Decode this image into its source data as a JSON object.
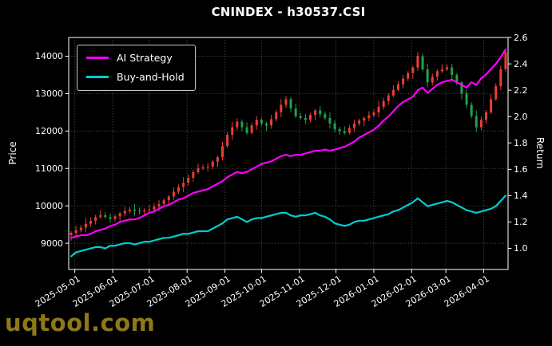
{
  "page": {
    "watermark": "uqtool.com",
    "watermark_color": "#8d7918",
    "background": "#000000"
  },
  "chart_data": {
    "type": "candlestick+line",
    "title": "CNINDEX - h30537.CSI",
    "legend_position": "upper-left",
    "grid": true,
    "axes": {
      "left": {
        "label": "Price",
        "ticks": [
          "9000",
          "10000",
          "11000",
          "12000",
          "13000",
          "14000"
        ],
        "range": [
          8300,
          14500
        ]
      },
      "right": {
        "label": "Return",
        "ticks": [
          "1.0",
          "1.2",
          "1.4",
          "1.6",
          "1.8",
          "2.0",
          "2.2",
          "2.4",
          "2.6"
        ],
        "range": [
          0.84,
          2.6
        ]
      },
      "bottom": {
        "ticks": [
          {
            "label": "2025-05-01",
            "pos": 0.75
          },
          {
            "label": "2025-06-01",
            "pos": 8.5
          },
          {
            "label": "2025-07-01",
            "pos": 16.0
          },
          {
            "label": "2025-08-01",
            "pos": 23.75
          },
          {
            "label": "2025-09-01",
            "pos": 31.5
          },
          {
            "label": "2025-10-01",
            "pos": 39.0
          },
          {
            "label": "2025-11-01",
            "pos": 46.75
          },
          {
            "label": "2025-12-01",
            "pos": 54.25
          },
          {
            "label": "2026-01-01",
            "pos": 62.0
          },
          {
            "label": "2026-02-01",
            "pos": 69.75
          },
          {
            "label": "2026-03-01",
            "pos": 76.75
          },
          {
            "label": "2026-04-01",
            "pos": 84.5
          }
        ]
      }
    },
    "candles": {
      "up_color": "#e93f33",
      "down_color": "#1fa24a",
      "open": [
        9220,
        9280,
        9350,
        9420,
        9520,
        9600,
        9700,
        9750,
        9700,
        9650,
        9720,
        9800,
        9860,
        9900,
        9870,
        9850,
        9880,
        9900,
        9980,
        10050,
        10150,
        10250,
        10380,
        10500,
        10620,
        10750,
        10900,
        11000,
        11030,
        11050,
        11180,
        11300,
        11600,
        11900,
        12100,
        12250,
        12100,
        11950,
        12150,
        12300,
        12200,
        12150,
        12320,
        12500,
        12700,
        12850,
        12600,
        12400,
        12350,
        12300,
        12430,
        12550,
        12450,
        12350,
        12200,
        12050,
        12000,
        11950,
        12080,
        12200,
        12280,
        12350,
        12420,
        12500,
        12650,
        12800,
        12950,
        13100,
        13250,
        13400,
        13550,
        13700,
        14000,
        13650,
        13300,
        13450,
        13600,
        13650,
        13700,
        13500,
        13300,
        13000,
        12700,
        12400,
        12100,
        12300,
        12500,
        12850,
        13200,
        13650
      ],
      "high": [
        9320,
        9460,
        9490,
        9670,
        9690,
        9760,
        9880,
        9830,
        9800,
        9770,
        9840,
        9970,
        9970,
        10050,
        9960,
        9940,
        10030,
        10060,
        10150,
        10200,
        10290,
        10490,
        10570,
        10770,
        10840,
        10960,
        11130,
        11110,
        11150,
        11230,
        11340,
        11710,
        11970,
        12250,
        12340,
        12310,
        12230,
        12230,
        12400,
        12350,
        12240,
        12430,
        12570,
        12850,
        12940,
        12910,
        12730,
        12480,
        12450,
        12480,
        12590,
        12660,
        12520,
        12500,
        12290,
        12110,
        12130,
        12160,
        12300,
        12330,
        12390,
        12530,
        12570,
        12800,
        12890,
        13010,
        13230,
        13330,
        13500,
        13600,
        13740,
        14110,
        14070,
        13800,
        13540,
        13660,
        13780,
        13780,
        13800,
        13550,
        13340,
        13110,
        12770,
        12550,
        12390,
        12560,
        12980,
        13280,
        13750,
        14150
      ],
      "low": [
        9070,
        9190,
        9290,
        9290,
        9440,
        9500,
        9650,
        9660,
        9540,
        9580,
        9570,
        9710,
        9800,
        9740,
        9770,
        9750,
        9830,
        9860,
        9870,
        9980,
        10000,
        10160,
        10320,
        10370,
        10540,
        10650,
        10850,
        10960,
        10920,
        10980,
        11030,
        11210,
        11540,
        11770,
        12020,
        12000,
        11900,
        11910,
        12040,
        12130,
        12000,
        12060,
        12260,
        12370,
        12620,
        12500,
        12350,
        12310,
        12190,
        12230,
        12280,
        12360,
        12290,
        12070,
        11970,
        11900,
        11900,
        11910,
        11970,
        12130,
        12130,
        12260,
        12360,
        12370,
        12570,
        12700,
        12900,
        13060,
        13140,
        13330,
        13400,
        13610,
        13590,
        13170,
        13220,
        13350,
        13550,
        13610,
        13390,
        13230,
        12850,
        12610,
        12340,
        11970,
        12020,
        12200,
        12450,
        12810,
        13090,
        13580
      ],
      "close": [
        9280,
        9350,
        9420,
        9520,
        9600,
        9700,
        9750,
        9700,
        9650,
        9720,
        9800,
        9860,
        9900,
        9870,
        9850,
        9880,
        9900,
        9980,
        10050,
        10150,
        10250,
        10380,
        10500,
        10620,
        10750,
        10900,
        11000,
        11030,
        11050,
        11180,
        11300,
        11600,
        11900,
        12100,
        12250,
        12100,
        11950,
        12150,
        12300,
        12200,
        12150,
        12320,
        12500,
        12700,
        12850,
        12600,
        12400,
        12350,
        12300,
        12430,
        12550,
        12450,
        12350,
        12200,
        12050,
        12000,
        11950,
        12080,
        12200,
        12280,
        12350,
        12420,
        12500,
        12650,
        12800,
        12950,
        13100,
        13250,
        13400,
        13550,
        13700,
        14000,
        13650,
        13300,
        13450,
        13600,
        13650,
        13700,
        13500,
        13300,
        13000,
        12700,
        12400,
        12100,
        12300,
        12500,
        12850,
        13200,
        13650,
        14100
      ]
    },
    "lines": [
      {
        "name": "AI Strategy",
        "color": "#ff00ff",
        "axis": "right",
        "values": [
          1.08,
          1.09,
          1.1,
          1.1,
          1.11,
          1.13,
          1.14,
          1.15,
          1.17,
          1.18,
          1.2,
          1.21,
          1.22,
          1.22,
          1.23,
          1.25,
          1.27,
          1.28,
          1.3,
          1.32,
          1.33,
          1.35,
          1.37,
          1.38,
          1.4,
          1.42,
          1.43,
          1.44,
          1.45,
          1.47,
          1.49,
          1.51,
          1.54,
          1.56,
          1.58,
          1.57,
          1.58,
          1.6,
          1.62,
          1.64,
          1.65,
          1.66,
          1.68,
          1.7,
          1.71,
          1.7,
          1.71,
          1.71,
          1.72,
          1.73,
          1.74,
          1.74,
          1.75,
          1.74,
          1.75,
          1.76,
          1.77,
          1.79,
          1.81,
          1.84,
          1.86,
          1.88,
          1.9,
          1.93,
          1.97,
          2.0,
          2.04,
          2.08,
          2.11,
          2.13,
          2.15,
          2.2,
          2.22,
          2.18,
          2.21,
          2.24,
          2.26,
          2.27,
          2.28,
          2.26,
          2.24,
          2.22,
          2.26,
          2.24,
          2.29,
          2.32,
          2.36,
          2.4,
          2.45,
          2.51
        ]
      },
      {
        "name": "Buy-and-Hold",
        "color": "#00ced1",
        "axis": "right",
        "values": [
          0.94,
          0.97,
          0.98,
          0.99,
          1.0,
          1.01,
          1.01,
          1.0,
          1.02,
          1.02,
          1.03,
          1.04,
          1.04,
          1.03,
          1.04,
          1.05,
          1.05,
          1.06,
          1.07,
          1.08,
          1.08,
          1.09,
          1.1,
          1.11,
          1.11,
          1.12,
          1.13,
          1.13,
          1.13,
          1.15,
          1.17,
          1.19,
          1.22,
          1.23,
          1.24,
          1.22,
          1.2,
          1.22,
          1.23,
          1.23,
          1.24,
          1.25,
          1.26,
          1.27,
          1.27,
          1.25,
          1.24,
          1.25,
          1.25,
          1.26,
          1.27,
          1.25,
          1.24,
          1.22,
          1.19,
          1.18,
          1.17,
          1.18,
          1.2,
          1.21,
          1.21,
          1.22,
          1.23,
          1.24,
          1.25,
          1.26,
          1.28,
          1.29,
          1.31,
          1.33,
          1.35,
          1.38,
          1.35,
          1.32,
          1.33,
          1.34,
          1.35,
          1.36,
          1.35,
          1.33,
          1.31,
          1.29,
          1.28,
          1.27,
          1.28,
          1.29,
          1.3,
          1.32,
          1.36,
          1.4
        ]
      }
    ]
  }
}
